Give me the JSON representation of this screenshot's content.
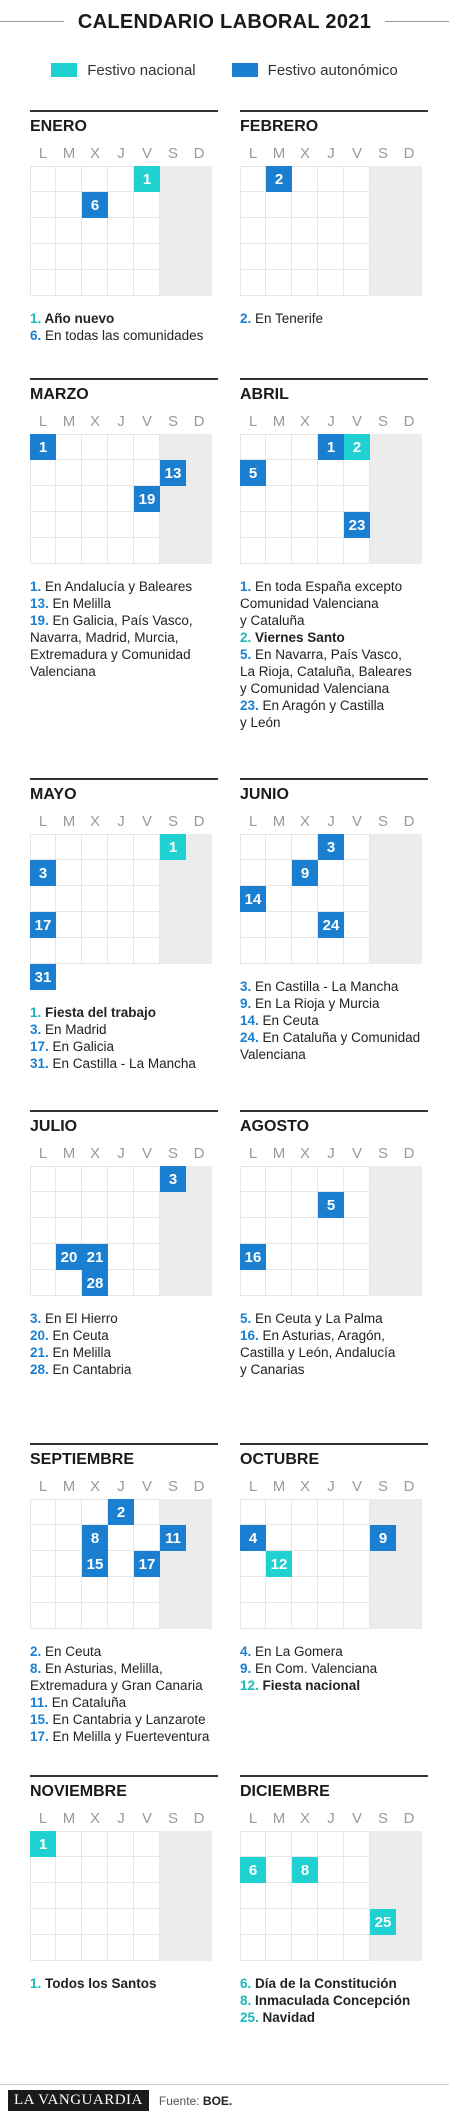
{
  "title": "CALENDARIO LABORAL 2021",
  "legend": {
    "nacional_label": "Festivo nacional",
    "autonomico_label": "Festivo autonómico",
    "colors": {
      "nacional": "#1fd1d1",
      "autonomico": "#1b7fd1"
    }
  },
  "weekdays": [
    "L",
    "M",
    "X",
    "J",
    "V",
    "S",
    "D"
  ],
  "months": [
    {
      "name": "ENERO",
      "holidays": [
        {
          "day": "1",
          "row": 0,
          "col": 4,
          "type": "nacional"
        },
        {
          "day": "6",
          "row": 1,
          "col": 2,
          "type": "autonomico"
        }
      ],
      "notes": [
        [
          {
            "t": "1.",
            "c": "nacional"
          },
          {
            "t": " Año nuevo",
            "b": true
          }
        ],
        [
          {
            "t": "6.",
            "c": "autonomico"
          },
          {
            "t": " En todas las comunidades"
          }
        ]
      ]
    },
    {
      "name": "FEBRERO",
      "holidays": [
        {
          "day": "2",
          "row": 0,
          "col": 1,
          "type": "autonomico"
        }
      ],
      "notes": [
        [
          {
            "t": "2.",
            "c": "autonomico"
          },
          {
            "t": " En Tenerife"
          }
        ]
      ]
    },
    {
      "name": "MARZO",
      "holidays": [
        {
          "day": "1",
          "row": 0,
          "col": 0,
          "type": "autonomico"
        },
        {
          "day": "13",
          "row": 1,
          "col": 5,
          "type": "autonomico"
        },
        {
          "day": "19",
          "row": 2,
          "col": 4,
          "type": "autonomico"
        }
      ],
      "notes": [
        [
          {
            "t": "1.",
            "c": "autonomico"
          },
          {
            "t": " En Andalucía y Baleares"
          }
        ],
        [
          {
            "t": "13.",
            "c": "autonomico"
          },
          {
            "t": " En Melilla"
          }
        ],
        [
          {
            "t": "19.",
            "c": "autonomico"
          },
          {
            "t": " En Galicia, País Vasco,"
          }
        ],
        [
          {
            "t": "Navarra, Madrid, Murcia,"
          }
        ],
        [
          {
            "t": "Extremadura y Comunidad"
          }
        ],
        [
          {
            "t": "Valenciana"
          }
        ]
      ]
    },
    {
      "name": "ABRIL",
      "holidays": [
        {
          "day": "1",
          "row": 0,
          "col": 3,
          "type": "autonomico"
        },
        {
          "day": "2",
          "row": 0,
          "col": 4,
          "type": "nacional"
        },
        {
          "day": "5",
          "row": 1,
          "col": 0,
          "type": "autonomico"
        },
        {
          "day": "23",
          "row": 3,
          "col": 4,
          "type": "autonomico"
        }
      ],
      "notes": [
        [
          {
            "t": "1.",
            "c": "autonomico"
          },
          {
            "t": " En toda España excepto"
          }
        ],
        [
          {
            "t": "Comunidad Valenciana"
          }
        ],
        [
          {
            "t": "y Cataluña"
          }
        ],
        [
          {
            "t": "2.",
            "c": "nacional"
          },
          {
            "t": " Viernes Santo",
            "b": true
          }
        ],
        [
          {
            "t": "5.",
            "c": "autonomico"
          },
          {
            "t": " En Navarra, País Vasco,"
          }
        ],
        [
          {
            "t": "La Rioja, Cataluña, Baleares"
          }
        ],
        [
          {
            "t": "y Comunidad Valenciana"
          }
        ],
        [
          {
            "t": "23.",
            "c": "autonomico"
          },
          {
            "t": " En Aragón y Castilla"
          }
        ],
        [
          {
            "t": "y León"
          }
        ]
      ]
    },
    {
      "name": "MAYO",
      "holidays": [
        {
          "day": "1",
          "row": 0,
          "col": 5,
          "type": "nacional"
        },
        {
          "day": "3",
          "row": 1,
          "col": 0,
          "type": "autonomico"
        },
        {
          "day": "17",
          "row": 3,
          "col": 0,
          "type": "autonomico"
        },
        {
          "day": "31",
          "row": 5,
          "col": 0,
          "type": "autonomico"
        }
      ],
      "notes": [
        [
          {
            "t": "1.",
            "c": "nacional"
          },
          {
            "t": " Fiesta del trabajo",
            "b": true
          }
        ],
        [
          {
            "t": "3.",
            "c": "autonomico"
          },
          {
            "t": " En Madrid"
          }
        ],
        [
          {
            "t": "17.",
            "c": "autonomico"
          },
          {
            "t": " En Galicia"
          }
        ],
        [
          {
            "t": "31.",
            "c": "autonomico"
          },
          {
            "t": " En Castilla - La Mancha"
          }
        ]
      ]
    },
    {
      "name": "JUNIO",
      "holidays": [
        {
          "day": "3",
          "row": 0,
          "col": 3,
          "type": "autonomico"
        },
        {
          "day": "9",
          "row": 1,
          "col": 2,
          "type": "autonomico"
        },
        {
          "day": "14",
          "row": 2,
          "col": 0,
          "type": "autonomico"
        },
        {
          "day": "24",
          "row": 3,
          "col": 3,
          "type": "autonomico"
        }
      ],
      "notes": [
        [
          {
            "t": "3.",
            "c": "autonomico"
          },
          {
            "t": " En Castilla - La Mancha"
          }
        ],
        [
          {
            "t": "9.",
            "c": "autonomico"
          },
          {
            "t": " En La Rioja y Murcia"
          }
        ],
        [
          {
            "t": "14.",
            "c": "autonomico"
          },
          {
            "t": " En Ceuta"
          }
        ],
        [
          {
            "t": "24.",
            "c": "autonomico"
          },
          {
            "t": " En Cataluña y Comunidad"
          }
        ],
        [
          {
            "t": "Valenciana"
          }
        ]
      ]
    },
    {
      "name": "JULIO",
      "holidays": [
        {
          "day": "3",
          "row": 0,
          "col": 5,
          "type": "autonomico"
        },
        {
          "day": "20",
          "row": 3,
          "col": 1,
          "type": "autonomico"
        },
        {
          "day": "21",
          "row": 3,
          "col": 2,
          "type": "autonomico"
        },
        {
          "day": "28",
          "row": 4,
          "col": 2,
          "type": "autonomico"
        }
      ],
      "notes": [
        [
          {
            "t": "3.",
            "c": "autonomico"
          },
          {
            "t": " En El Hierro"
          }
        ],
        [
          {
            "t": "20.",
            "c": "autonomico"
          },
          {
            "t": " En Ceuta"
          }
        ],
        [
          {
            "t": "21.",
            "c": "autonomico"
          },
          {
            "t": " En Melilla"
          }
        ],
        [
          {
            "t": "28.",
            "c": "autonomico"
          },
          {
            "t": " En Cantabria"
          }
        ]
      ]
    },
    {
      "name": "AGOSTO",
      "holidays": [
        {
          "day": "5",
          "row": 1,
          "col": 3,
          "type": "autonomico"
        },
        {
          "day": "16",
          "row": 3,
          "col": 0,
          "type": "autonomico"
        }
      ],
      "notes": [
        [
          {
            "t": "5.",
            "c": "autonomico"
          },
          {
            "t": " En Ceuta y La Palma"
          }
        ],
        [
          {
            "t": "16.",
            "c": "autonomico"
          },
          {
            "t": " En Asturias, Aragón,"
          }
        ],
        [
          {
            "t": "Castilla y León, Andalucía"
          }
        ],
        [
          {
            "t": "y Canarias"
          }
        ]
      ]
    },
    {
      "name": "SEPTIEMBRE",
      "holidays": [
        {
          "day": "2",
          "row": 0,
          "col": 3,
          "type": "autonomico"
        },
        {
          "day": "8",
          "row": 1,
          "col": 2,
          "type": "autonomico"
        },
        {
          "day": "11",
          "row": 1,
          "col": 5,
          "type": "autonomico"
        },
        {
          "day": "15",
          "row": 2,
          "col": 2,
          "type": "autonomico"
        },
        {
          "day": "17",
          "row": 2,
          "col": 4,
          "type": "autonomico"
        }
      ],
      "notes": [
        [
          {
            "t": "2.",
            "c": "autonomico"
          },
          {
            "t": " En Ceuta"
          }
        ],
        [
          {
            "t": "8.",
            "c": "autonomico"
          },
          {
            "t": " En Asturias, Melilla,"
          }
        ],
        [
          {
            "t": "Extremadura y Gran Canaria"
          }
        ],
        [
          {
            "t": "11.",
            "c": "autonomico"
          },
          {
            "t": " En Cataluña"
          }
        ],
        [
          {
            "t": "15.",
            "c": "autonomico"
          },
          {
            "t": " En Cantabria y Lanzarote"
          }
        ],
        [
          {
            "t": "17.",
            "c": "autonomico"
          },
          {
            "t": " En Melilla y Fuerteventura"
          }
        ]
      ]
    },
    {
      "name": "OCTUBRE",
      "holidays": [
        {
          "day": "4",
          "row": 1,
          "col": 0,
          "type": "autonomico"
        },
        {
          "day": "9",
          "row": 1,
          "col": 5,
          "type": "autonomico"
        },
        {
          "day": "12",
          "row": 2,
          "col": 1,
          "type": "nacional"
        }
      ],
      "notes": [
        [
          {
            "t": "4.",
            "c": "autonomico"
          },
          {
            "t": " En La Gomera"
          }
        ],
        [
          {
            "t": "9.",
            "c": "autonomico"
          },
          {
            "t": " En Com. Valenciana"
          }
        ],
        [
          {
            "t": "12.",
            "c": "nacional"
          },
          {
            "t": " Fiesta nacional",
            "b": true
          }
        ]
      ]
    },
    {
      "name": "NOVIEMBRE",
      "holidays": [
        {
          "day": "1",
          "row": 0,
          "col": 0,
          "type": "nacional"
        }
      ],
      "notes": [
        [
          {
            "t": "1.",
            "c": "nacional"
          },
          {
            "t": " Todos los Santos",
            "b": true
          }
        ]
      ]
    },
    {
      "name": "DICIEMBRE",
      "holidays": [
        {
          "day": "6",
          "row": 1,
          "col": 0,
          "type": "nacional"
        },
        {
          "day": "8",
          "row": 1,
          "col": 2,
          "type": "nacional"
        },
        {
          "day": "25",
          "row": 3,
          "col": 5,
          "type": "nacional"
        }
      ],
      "notes": [
        [
          {
            "t": "6.",
            "c": "nacional"
          },
          {
            "t": " Día de la Constitución",
            "b": true
          }
        ],
        [
          {
            "t": "8.",
            "c": "nacional"
          },
          {
            "t": " Inmaculada Concepción",
            "b": true
          }
        ],
        [
          {
            "t": "25.",
            "c": "nacional"
          },
          {
            "t": " Navidad",
            "b": true
          }
        ]
      ]
    }
  ],
  "footer": {
    "logo": "LA VANGUARDIA",
    "source_label": "Fuente:",
    "source_value": "BOE."
  }
}
